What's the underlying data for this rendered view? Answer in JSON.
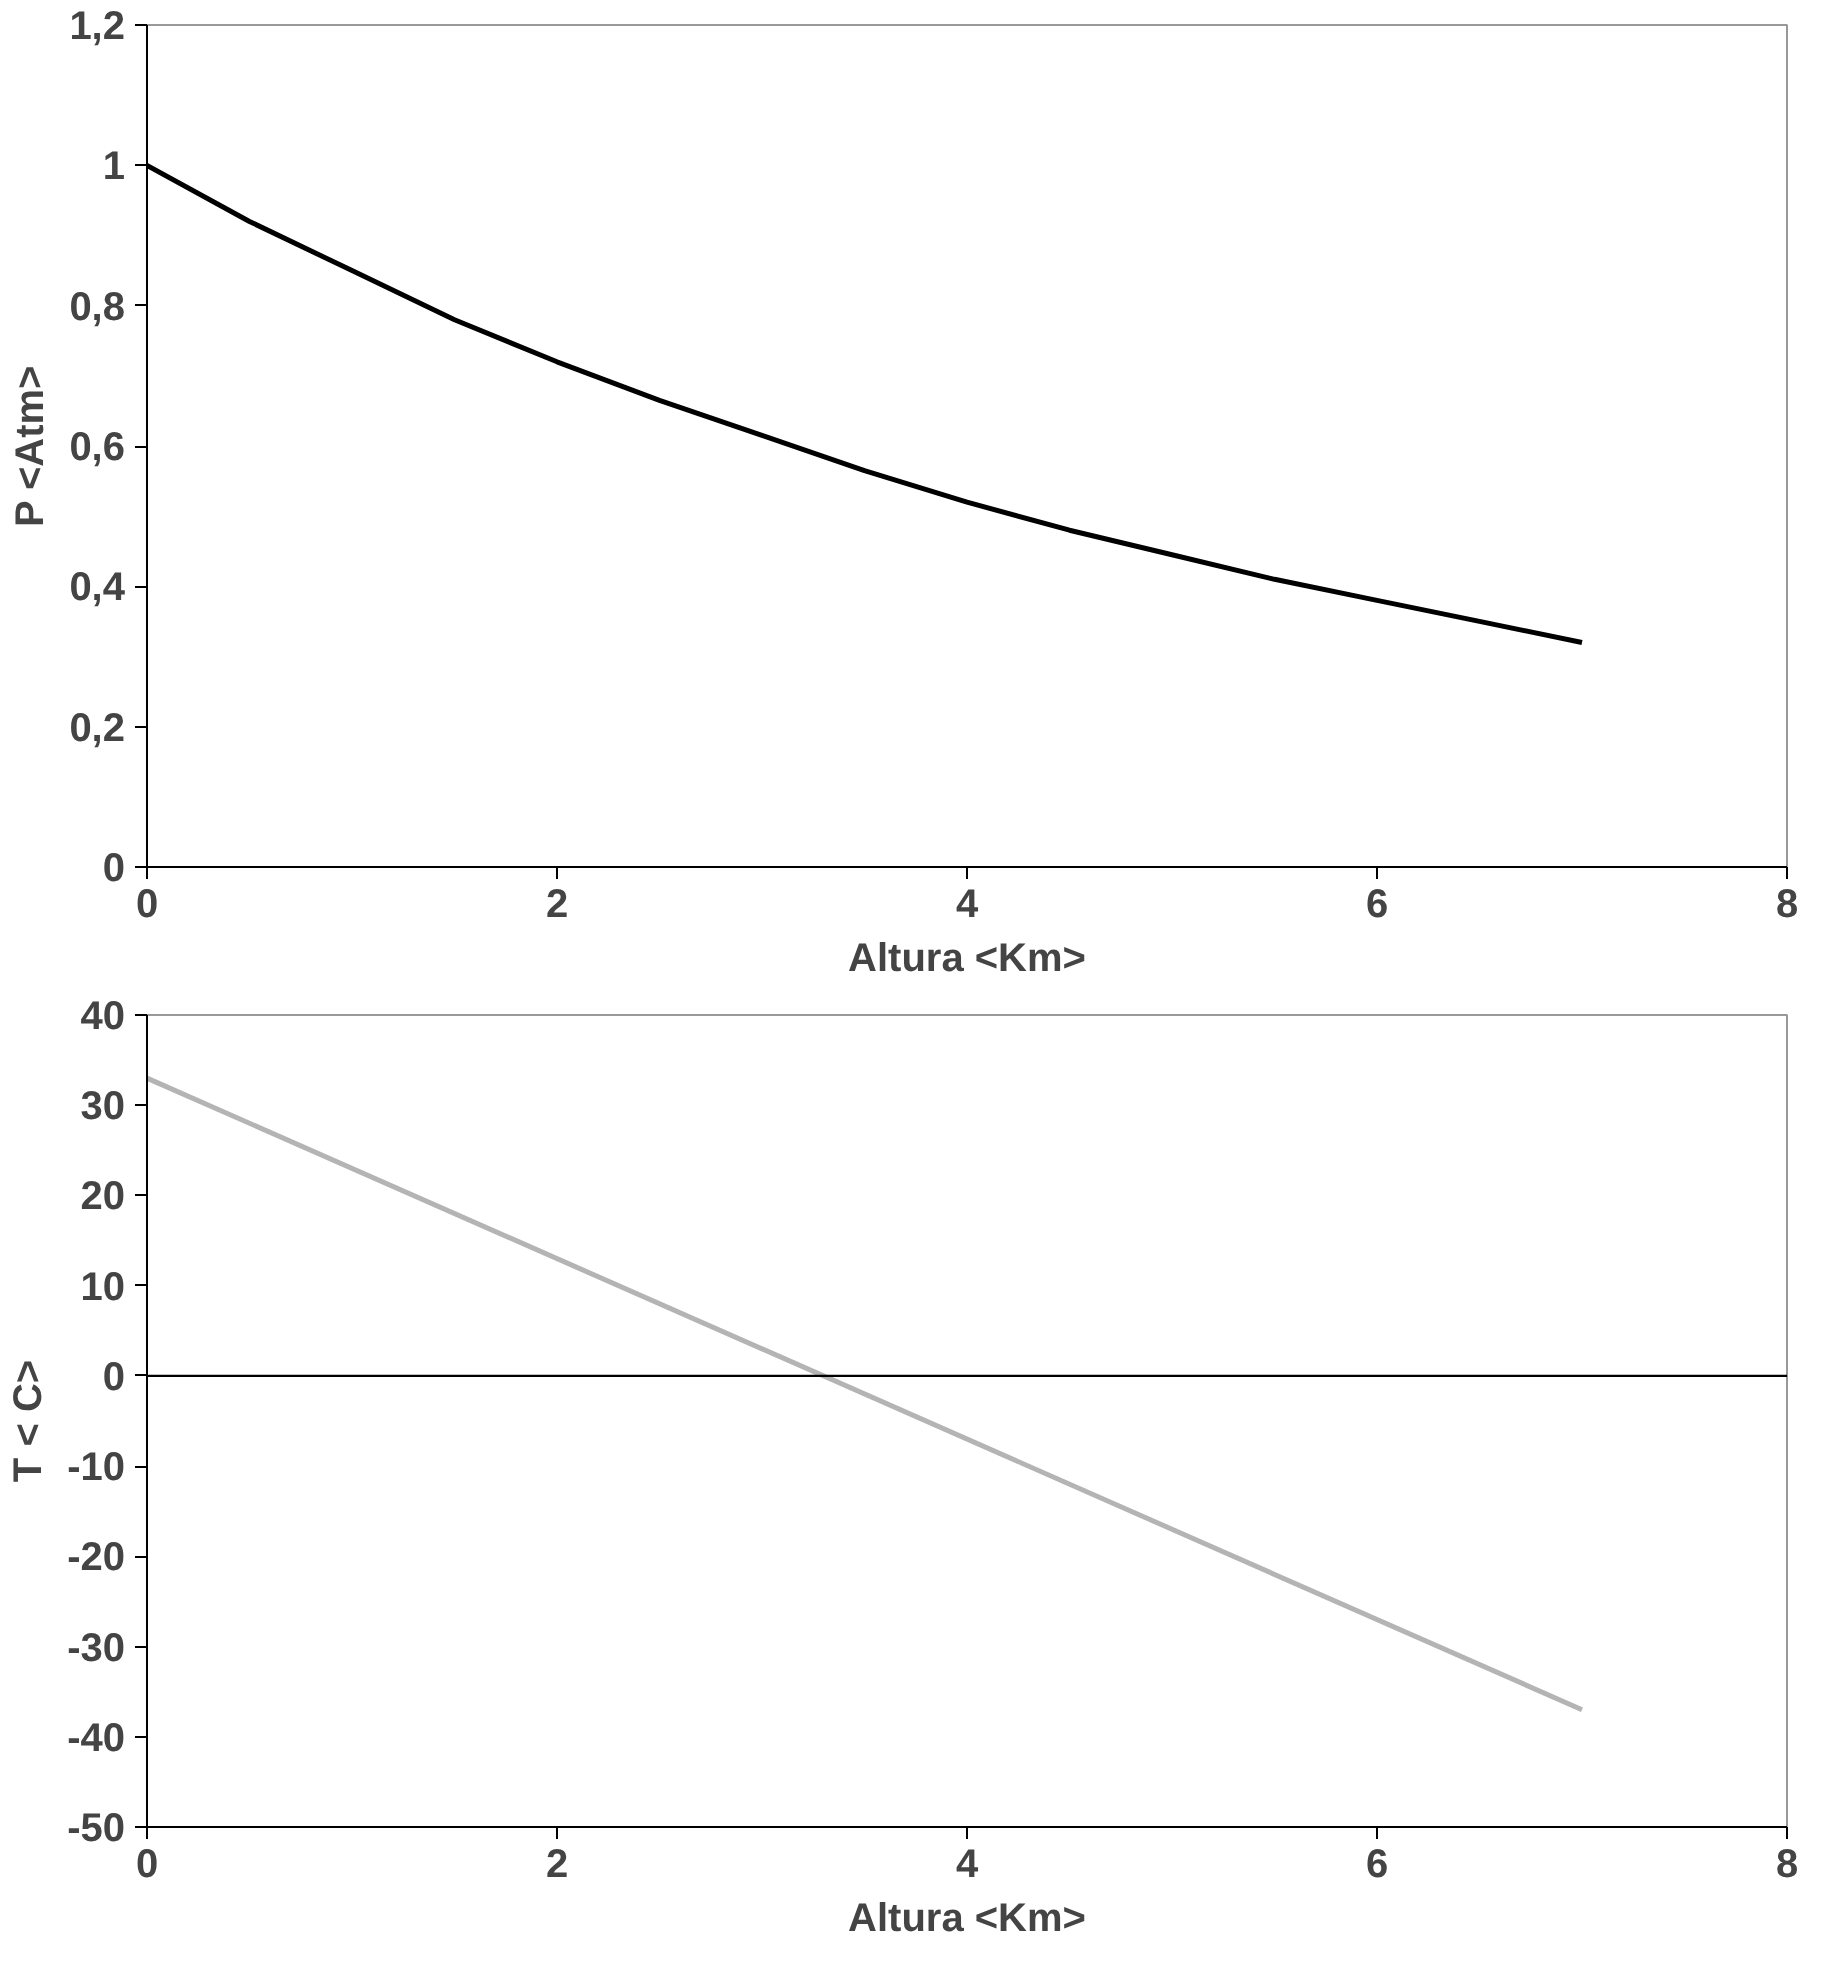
{
  "chart_data": [
    {
      "type": "line",
      "xlabel": "Altura <Km>",
      "ylabel": "P <Atm>",
      "color": "#000000",
      "grid": false,
      "marker": "none",
      "line_style": "solid",
      "x": [
        0,
        0.5,
        1,
        1.5,
        2,
        2.5,
        3,
        3.5,
        4,
        4.5,
        5,
        5.5,
        6,
        6.5,
        7
      ],
      "values": [
        1,
        0.92,
        0.85,
        0.78,
        0.72,
        0.665,
        0.615,
        0.565,
        0.52,
        0.48,
        0.445,
        0.41,
        0.38,
        0.35,
        0.32
      ],
      "xlim": [
        0,
        8
      ],
      "xticks": [
        0,
        2,
        4,
        6,
        8
      ],
      "ylim": [
        0,
        1.2
      ],
      "yticks": [
        {
          "value": 0,
          "label": "0"
        },
        {
          "value": 0.2,
          "label": "0,2"
        },
        {
          "value": 0.4,
          "label": "0,4"
        },
        {
          "value": 0.6,
          "label": "0,6"
        },
        {
          "value": 0.8,
          "label": "0,8"
        },
        {
          "value": 1,
          "label": "1"
        },
        {
          "value": 1.2,
          "label": "1,2"
        }
      ]
    },
    {
      "type": "line",
      "xlabel": "Altura <Km>",
      "ylabel": "T < C>",
      "color": "#b4b4b4",
      "grid": false,
      "marker": "none",
      "line_style": "solid",
      "x": [
        0,
        7
      ],
      "values": [
        33,
        -37
      ],
      "ref_lines": [
        {
          "axis": "y",
          "value": 0,
          "color": "#000000"
        }
      ],
      "xlim": [
        0,
        8
      ],
      "xticks": [
        0,
        2,
        4,
        6,
        8
      ],
      "ylim": [
        -50,
        40
      ],
      "yticks": [
        {
          "value": -50,
          "label": "-50"
        },
        {
          "value": -40,
          "label": "-40"
        },
        {
          "value": -30,
          "label": "-30"
        },
        {
          "value": -20,
          "label": "-20"
        },
        {
          "value": -10,
          "label": "-10"
        },
        {
          "value": 0,
          "label": "0"
        },
        {
          "value": 10,
          "label": "10"
        },
        {
          "value": 20,
          "label": "20"
        },
        {
          "value": 30,
          "label": "30"
        },
        {
          "value": 40,
          "label": "40"
        }
      ]
    }
  ]
}
